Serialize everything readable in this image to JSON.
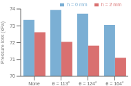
{
  "chart_data": {
    "type": "bar",
    "categories": [
      "None",
      "θ = 113°",
      "θ = 124°",
      "θ = 164°"
    ],
    "series": [
      {
        "name": "h = 0 mm",
        "color": "#7bafd4",
        "values": [
          73.35,
          73.95,
          73.72,
          73.05
        ]
      },
      {
        "name": "h = 2 mm",
        "color": "#d97070",
        "values": [
          72.62,
          72.05,
          71.82,
          71.1
        ]
      }
    ],
    "ylabel": "Pressure loss (kPa)",
    "ylim": [
      70,
      74
    ],
    "yticks": [
      70,
      71,
      72,
      73,
      74
    ],
    "grid": false,
    "legend": "upper right"
  }
}
